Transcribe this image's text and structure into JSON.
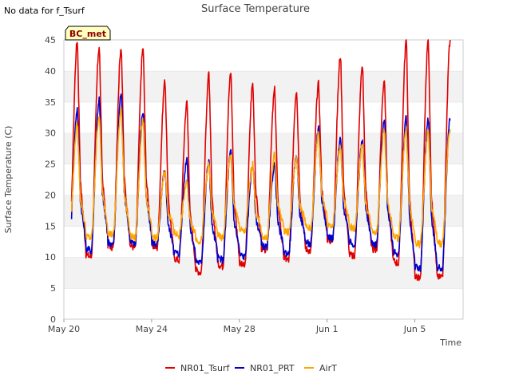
{
  "note": "No data for f_Tsurf",
  "badge": "BC_met",
  "chart_data": {
    "type": "line",
    "title": "Surface Temperature",
    "xlabel": "Time",
    "ylabel": "Surface Temperature (C)",
    "ylim": [
      0,
      45
    ],
    "xlim": [
      0,
      18.2
    ],
    "yticks": [
      0,
      5,
      10,
      15,
      20,
      25,
      30,
      35,
      40,
      45
    ],
    "xticks": [
      {
        "day": 0,
        "label": "May 20"
      },
      {
        "day": 4,
        "label": "May 24"
      },
      {
        "day": 8,
        "label": "May 28"
      },
      {
        "day": 12,
        "label": "Jun 1"
      },
      {
        "day": 16,
        "label": "Jun 5"
      }
    ],
    "grid": "horizontal bands",
    "legend_position": "bottom",
    "series": [
      {
        "name": "NR01_Tsurf",
        "color": "#e00000",
        "daily_min": [
          10,
          10,
          11.5,
          11.5,
          11.5,
          9.5,
          7.5,
          8.5,
          8.5,
          11,
          9.5,
          11,
          12.5,
          10,
          11,
          9,
          6.5
        ],
        "daily_max": [
          45,
          44,
          44,
          43.8,
          38.5,
          35,
          39.5,
          40,
          38,
          37,
          37,
          38,
          42.5,
          41,
          38.8,
          45
        ]
      },
      {
        "name": "NR01_PRT",
        "color": "#0000cc",
        "daily_min": [
          11,
          11,
          12,
          12,
          12,
          10.5,
          9,
          9.5,
          10,
          11.5,
          10.5,
          12,
          13,
          12,
          12,
          10.5,
          8
        ],
        "daily_max": [
          34,
          35.5,
          36.5,
          33.5,
          24,
          26,
          25.5,
          27,
          25,
          25,
          26.5,
          31,
          29,
          29,
          32.5
        ]
      },
      {
        "name": "AirT",
        "color": "#ffa500",
        "daily_min": [
          13,
          13,
          13.5,
          13,
          13,
          13.5,
          12.5,
          13,
          14,
          13,
          14,
          14.5,
          15,
          14.5,
          14,
          13,
          12
        ],
        "daily_max": [
          31.5,
          33,
          34,
          32,
          24,
          22,
          25,
          26.5,
          25,
          26.5,
          26,
          30,
          28,
          28,
          30.5
        ]
      }
    ]
  }
}
